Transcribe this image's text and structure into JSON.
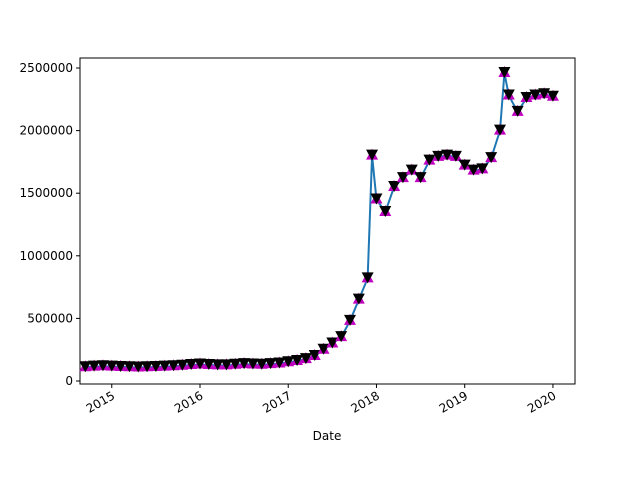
{
  "chart_data": {
    "type": "line",
    "x_label": "Date",
    "x": [
      2014.7,
      2014.8,
      2014.9,
      2015.0,
      2015.1,
      2015.2,
      2015.3,
      2015.4,
      2015.5,
      2015.6,
      2015.7,
      2015.8,
      2015.9,
      2016.0,
      2016.1,
      2016.2,
      2016.3,
      2016.4,
      2016.5,
      2016.6,
      2016.7,
      2016.8,
      2016.9,
      2017.0,
      2017.1,
      2017.2,
      2017.3,
      2017.4,
      2017.5,
      2017.6,
      2017.7,
      2017.8,
      2017.9,
      2017.95,
      2018.0,
      2018.1,
      2018.2,
      2018.3,
      2018.4,
      2018.5,
      2018.6,
      2018.7,
      2018.8,
      2018.9,
      2019.0,
      2019.1,
      2019.2,
      2019.3,
      2019.4,
      2019.45,
      2019.5,
      2019.6,
      2019.7,
      2019.8,
      2019.9,
      2020.0
    ],
    "series": [
      {
        "color": "#1f77b4",
        "values": [
          110000,
          115000,
          118000,
          115000,
          112000,
          110000,
          108000,
          110000,
          112000,
          115000,
          118000,
          122000,
          128000,
          132000,
          128000,
          125000,
          125000,
          130000,
          135000,
          132000,
          130000,
          135000,
          140000,
          150000,
          160000,
          175000,
          200000,
          250000,
          300000,
          350000,
          480000,
          650000,
          820000,
          1800000,
          1450000,
          1350000,
          1550000,
          1620000,
          1680000,
          1620000,
          1760000,
          1790000,
          1800000,
          1790000,
          1720000,
          1680000,
          1690000,
          1780000,
          2000000,
          2460000,
          2280000,
          2150000,
          2260000,
          2280000,
          2290000,
          2270000
        ]
      }
    ],
    "up_marker_color": "#bf00bf",
    "down_marker_color": "#000000",
    "xlim": [
      2014.64,
      2020.25
    ],
    "xticks": [
      2015,
      2016,
      2017,
      2018,
      2019,
      2020
    ],
    "ylim": [
      -24000,
      2580000
    ],
    "yticks": [
      0,
      500000,
      1000000,
      1500000,
      2000000,
      2500000
    ]
  }
}
